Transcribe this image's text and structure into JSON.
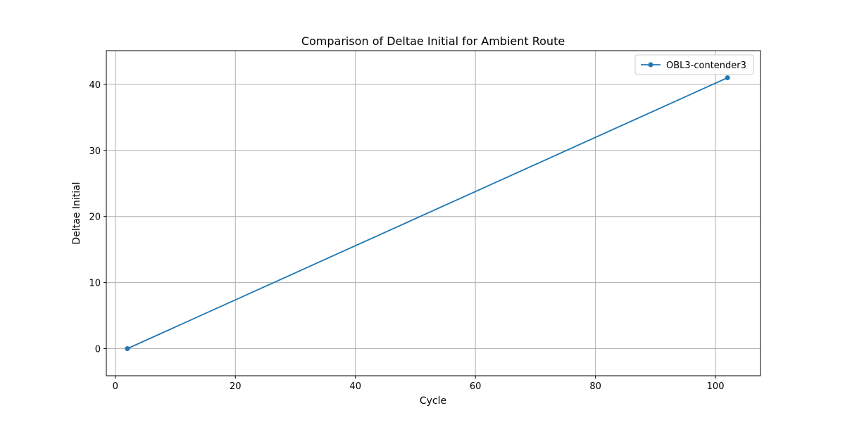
{
  "chart_data": {
    "type": "line",
    "title": "Comparison of Deltae Initial for Ambient Route",
    "xlabel": "Cycle",
    "ylabel": "Deltae Initial",
    "xlim": [
      -1.5,
      107.5
    ],
    "ylim": [
      -4.1,
      45.1
    ],
    "xticks": [
      0,
      20,
      40,
      60,
      80,
      100
    ],
    "yticks": [
      0,
      10,
      20,
      30,
      40
    ],
    "xtick_labels": [
      "0",
      "20",
      "40",
      "60",
      "80",
      "100"
    ],
    "ytick_labels": [
      "0",
      "10",
      "20",
      "30",
      "40"
    ],
    "grid": true,
    "legend_position": "upper right",
    "series": [
      {
        "name": "OBL3-contender3",
        "color": "#1f77b4",
        "marker": "circle",
        "x": [
          2,
          102
        ],
        "y": [
          0,
          41
        ]
      }
    ]
  }
}
